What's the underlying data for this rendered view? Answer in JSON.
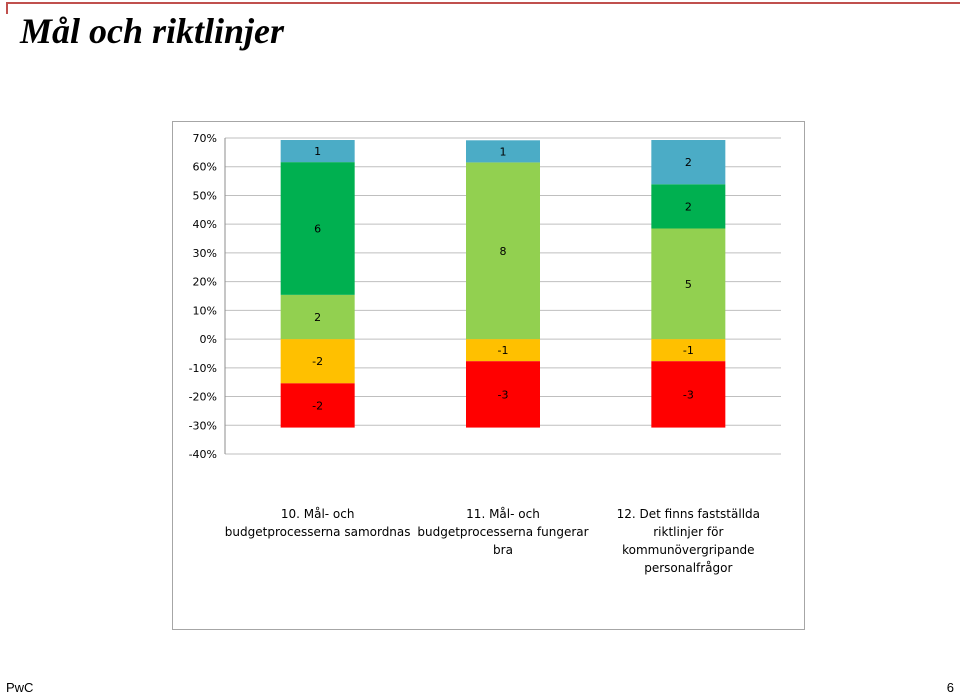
{
  "slide": {
    "title": "Mål och riktlinjer",
    "footer_left": "PwC",
    "page_number": "6"
  },
  "chart_data": {
    "type": "bar",
    "stacked": true,
    "title": "",
    "xlabel": "",
    "ylabel": "",
    "ylim": [
      -0.4,
      0.7
    ],
    "yticks": [
      "70%",
      "60%",
      "50%",
      "40%",
      "30%",
      "20%",
      "10%",
      "0%",
      "-10%",
      "-20%",
      "-30%",
      "-40%"
    ],
    "grid": true,
    "legend": "none",
    "categories": [
      [
        "10. Mål- och",
        "budgetprocesserna samordnas"
      ],
      [
        "11. Mål- och",
        "budgetprocesserna fungerar",
        "bra"
      ],
      [
        "12. Det finns fastställda",
        "riktlinjer för",
        "kommunövergripande",
        "personalfrågor"
      ]
    ],
    "series": [
      {
        "color": "#ff0000",
        "values": [
          -0.154,
          -0.231,
          -0.231
        ],
        "labels": [
          "-2",
          "-3",
          "-3"
        ]
      },
      {
        "color": "#ffc000",
        "values": [
          -0.154,
          -0.077,
          -0.077
        ],
        "labels": [
          "-2",
          "-1",
          "-1"
        ]
      },
      {
        "color": "#92d050",
        "values": [
          0.154,
          0.615,
          0.385
        ],
        "labels": [
          "2",
          "8",
          "5"
        ]
      },
      {
        "color": "#00b050",
        "values": [
          0.462,
          0.0,
          0.154
        ],
        "labels": [
          "6",
          "",
          "2"
        ]
      },
      {
        "color": "#4bacc6",
        "values": [
          0.077,
          0.077,
          0.154
        ],
        "labels": [
          "1",
          "1",
          "2"
        ]
      }
    ]
  }
}
